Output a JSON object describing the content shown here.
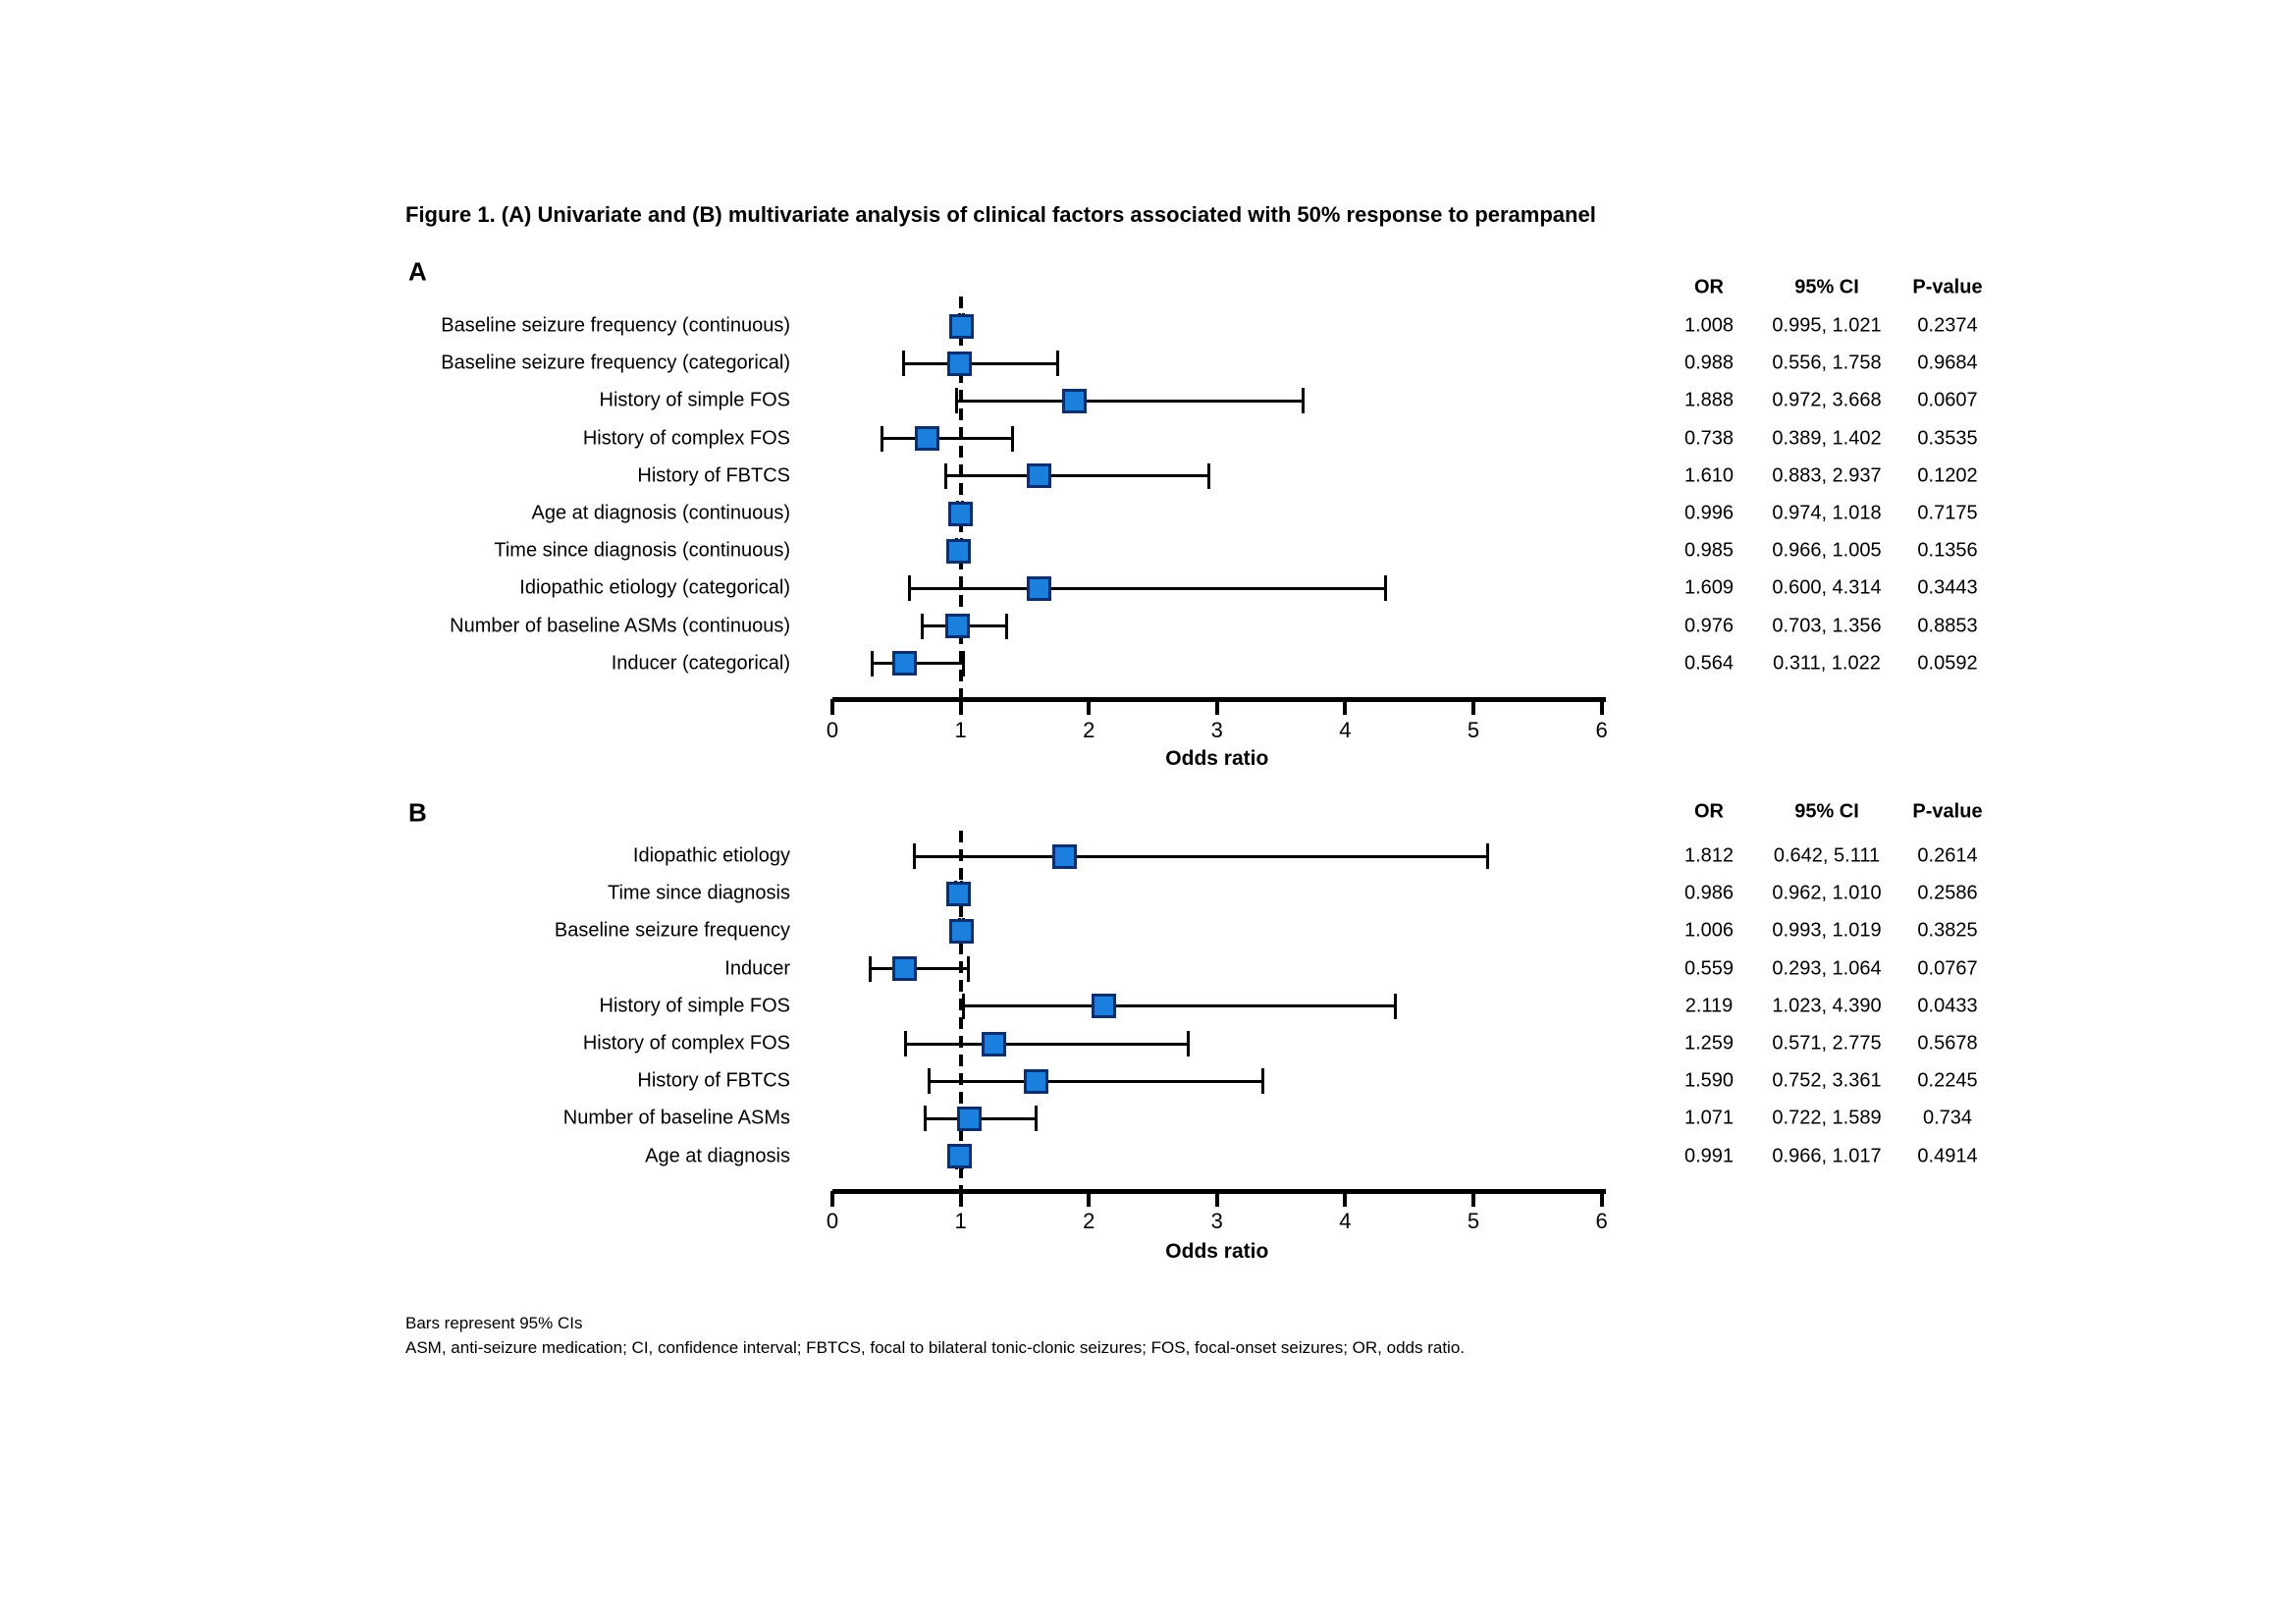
{
  "figure": {
    "title": "Figure 1. (A) Univariate and (B) multivariate analysis of clinical factors associated with 50% response to perampanel",
    "footnotes": [
      "Bars represent 95% CIs",
      "ASM, anti-seizure medication; CI, confidence interval; FBTCS, focal to bilateral tonic-clonic seizures; FOS, focal-onset seizures; OR, odds ratio."
    ]
  },
  "table_headers": {
    "or": "OR",
    "ci": "95% CI",
    "p": "P-value"
  },
  "colors": {
    "marker_fill": "#1b80dd",
    "marker_border": "#0d2f6e",
    "axis": "#000000"
  },
  "chart_data": [
    {
      "type": "forest",
      "panel_label": "A",
      "xlabel": "Odds ratio",
      "xlim": [
        0,
        6
      ],
      "xticks": [
        0,
        1,
        2,
        3,
        4,
        5,
        6
      ],
      "reference_line": 1,
      "grid": false,
      "rows": [
        {
          "label": "Baseline seizure frequency (continuous)",
          "or": 1.008,
          "ci_low": 0.995,
          "ci_high": 1.021,
          "or_text": "1.008",
          "ci_text": "0.995, 1.021",
          "p_text": "0.2374"
        },
        {
          "label": "Baseline seizure frequency (categorical)",
          "or": 0.988,
          "ci_low": 0.556,
          "ci_high": 1.758,
          "or_text": "0.988",
          "ci_text": "0.556, 1.758",
          "p_text": "0.9684"
        },
        {
          "label": "History of simple FOS",
          "or": 1.888,
          "ci_low": 0.972,
          "ci_high": 3.668,
          "or_text": "1.888",
          "ci_text": "0.972, 3.668",
          "p_text": "0.0607"
        },
        {
          "label": "History of complex FOS",
          "or": 0.738,
          "ci_low": 0.389,
          "ci_high": 1.402,
          "or_text": "0.738",
          "ci_text": "0.389, 1.402",
          "p_text": "0.3535"
        },
        {
          "label": "History of FBTCS",
          "or": 1.61,
          "ci_low": 0.883,
          "ci_high": 2.937,
          "or_text": "1.610",
          "ci_text": "0.883, 2.937",
          "p_text": "0.1202"
        },
        {
          "label": "Age at diagnosis (continuous)",
          "or": 0.996,
          "ci_low": 0.974,
          "ci_high": 1.018,
          "or_text": "0.996",
          "ci_text": "0.974, 1.018",
          "p_text": "0.7175"
        },
        {
          "label": "Time since diagnosis (continuous)",
          "or": 0.985,
          "ci_low": 0.966,
          "ci_high": 1.005,
          "or_text": "0.985",
          "ci_text": "0.966, 1.005",
          "p_text": "0.1356"
        },
        {
          "label": "Idiopathic etiology (categorical)",
          "or": 1.609,
          "ci_low": 0.6,
          "ci_high": 4.314,
          "or_text": "1.609",
          "ci_text": "0.600, 4.314",
          "p_text": "0.3443"
        },
        {
          "label": "Number of baseline ASMs (continuous)",
          "or": 0.976,
          "ci_low": 0.703,
          "ci_high": 1.356,
          "or_text": "0.976",
          "ci_text": "0.703, 1.356",
          "p_text": "0.8853"
        },
        {
          "label": "Inducer (categorical)",
          "or": 0.564,
          "ci_low": 0.311,
          "ci_high": 1.022,
          "or_text": "0.564",
          "ci_text": "0.311, 1.022",
          "p_text": "0.0592"
        }
      ]
    },
    {
      "type": "forest",
      "panel_label": "B",
      "xlabel": "Odds ratio",
      "xlim": [
        0,
        6
      ],
      "xticks": [
        0,
        1,
        2,
        3,
        4,
        5,
        6
      ],
      "reference_line": 1,
      "grid": false,
      "rows": [
        {
          "label": "Idiopathic etiology",
          "or": 1.812,
          "ci_low": 0.642,
          "ci_high": 5.111,
          "or_text": "1.812",
          "ci_text": "0.642, 5.111",
          "p_text": "0.2614"
        },
        {
          "label": "Time since diagnosis",
          "or": 0.986,
          "ci_low": 0.962,
          "ci_high": 1.01,
          "or_text": "0.986",
          "ci_text": "0.962, 1.010",
          "p_text": "0.2586"
        },
        {
          "label": "Baseline seizure frequency",
          "or": 1.006,
          "ci_low": 0.993,
          "ci_high": 1.019,
          "or_text": "1.006",
          "ci_text": "0.993, 1.019",
          "p_text": "0.3825"
        },
        {
          "label": "Inducer",
          "or": 0.559,
          "ci_low": 0.293,
          "ci_high": 1.064,
          "or_text": "0.559",
          "ci_text": "0.293, 1.064",
          "p_text": "0.0767"
        },
        {
          "label": "History of simple FOS",
          "or": 2.119,
          "ci_low": 1.023,
          "ci_high": 4.39,
          "or_text": "2.119",
          "ci_text": "1.023, 4.390",
          "p_text": "0.0433"
        },
        {
          "label": "History of complex FOS",
          "or": 1.259,
          "ci_low": 0.571,
          "ci_high": 2.775,
          "or_text": "1.259",
          "ci_text": "0.571, 2.775",
          "p_text": "0.5678"
        },
        {
          "label": "History of FBTCS",
          "or": 1.59,
          "ci_low": 0.752,
          "ci_high": 3.361,
          "or_text": "1.590",
          "ci_text": "0.752, 3.361",
          "p_text": "0.2245"
        },
        {
          "label": "Number of baseline ASMs",
          "or": 1.071,
          "ci_low": 0.722,
          "ci_high": 1.589,
          "or_text": "1.071",
          "ci_text": "0.722, 1.589",
          "p_text": "0.734"
        },
        {
          "label": "Age at diagnosis",
          "or": 0.991,
          "ci_low": 0.966,
          "ci_high": 1.017,
          "or_text": "0.991",
          "ci_text": "0.966, 1.017",
          "p_text": "0.4914"
        }
      ]
    }
  ]
}
